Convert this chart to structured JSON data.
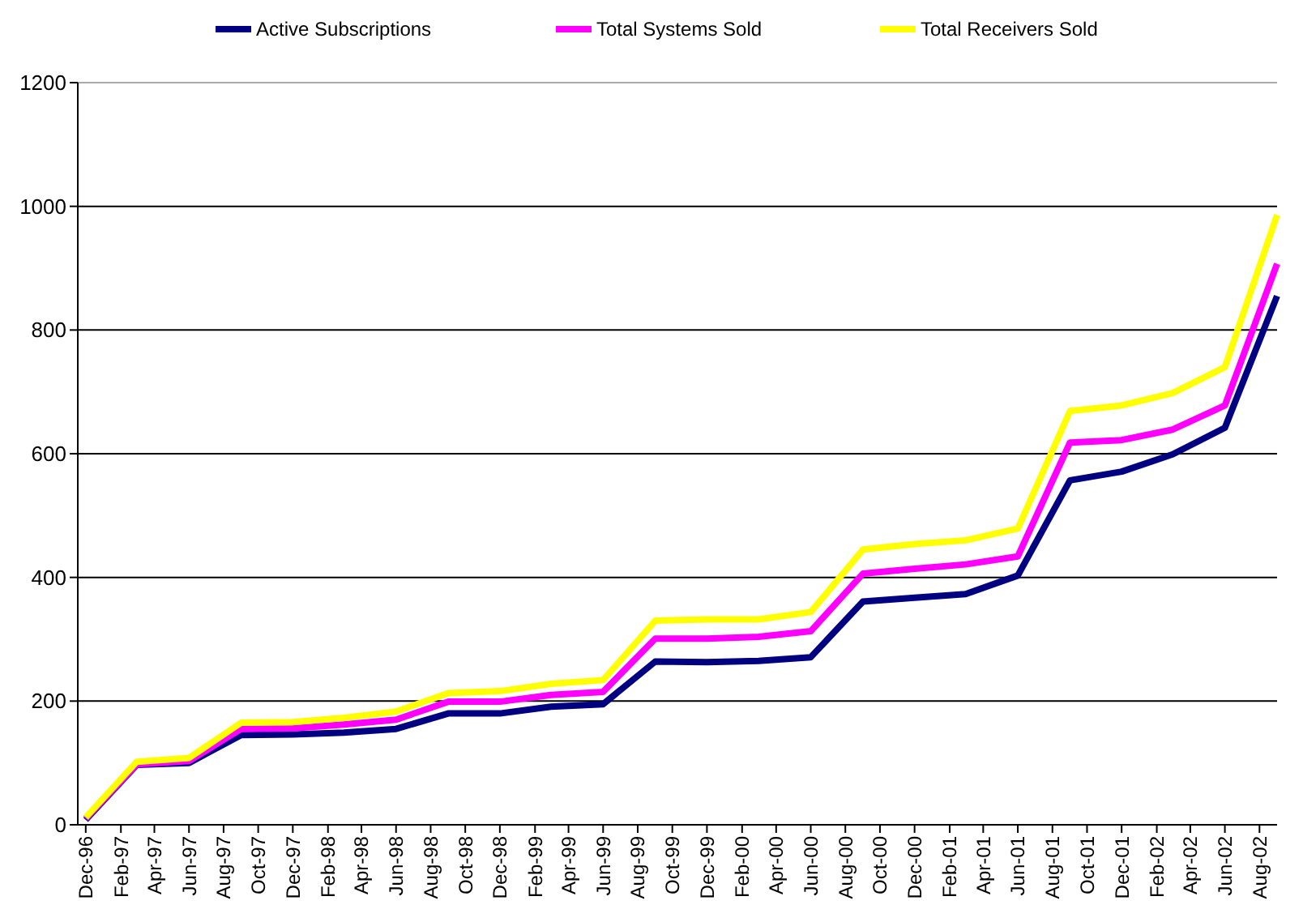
{
  "chart_data": {
    "type": "line",
    "x": [
      "1996-12",
      "1997-03",
      "1997-06",
      "1997-09",
      "1997-12",
      "1998-03",
      "1998-06",
      "1998-09",
      "1998-12",
      "1999-03",
      "1999-06",
      "1999-09",
      "1999-12",
      "2000-03",
      "2000-06",
      "2000-09",
      "2000-12",
      "2001-03",
      "2001-06",
      "2001-09",
      "2001-12",
      "2002-03",
      "2002-06",
      "2002-09"
    ],
    "series": [
      {
        "name": "Active Subscriptions",
        "color": "#000080",
        "values": [
          8,
          97,
          100,
          145,
          146,
          149,
          155,
          180,
          180,
          191,
          195,
          264,
          263,
          265,
          271,
          361,
          367,
          373,
          403,
          557,
          571,
          599,
          642,
          855
        ]
      },
      {
        "name": "Total Systems Sold",
        "color": "#ff00ff",
        "values": [
          10,
          98,
          103,
          155,
          156,
          162,
          170,
          199,
          199,
          210,
          215,
          301,
          301,
          304,
          313,
          406,
          414,
          421,
          434,
          618,
          622,
          639,
          678,
          907
        ]
      },
      {
        "name": "Total Receivers Sold",
        "color": "#ffff00",
        "values": [
          12,
          102,
          108,
          165,
          166,
          173,
          183,
          213,
          216,
          228,
          234,
          330,
          332,
          332,
          344,
          445,
          454,
          460,
          479,
          669,
          678,
          698,
          740,
          986
        ]
      }
    ],
    "xlim": [
      "1996-11-17",
      "2002-09-01"
    ],
    "xticks": [
      {
        "value": "1996-12",
        "label": "Dec-96"
      },
      {
        "value": "1997-02",
        "label": "Feb-97"
      },
      {
        "value": "1997-04",
        "label": "Apr-97"
      },
      {
        "value": "1997-06",
        "label": "Jun-97"
      },
      {
        "value": "1997-08",
        "label": "Aug-97"
      },
      {
        "value": "1997-10",
        "label": "Oct-97"
      },
      {
        "value": "1997-12",
        "label": "Dec-97"
      },
      {
        "value": "1998-02",
        "label": "Feb-98"
      },
      {
        "value": "1998-04",
        "label": "Apr-98"
      },
      {
        "value": "1998-06",
        "label": "Jun-98"
      },
      {
        "value": "1998-08",
        "label": "Aug-98"
      },
      {
        "value": "1998-10",
        "label": "Oct-98"
      },
      {
        "value": "1998-12",
        "label": "Dec-98"
      },
      {
        "value": "1999-02",
        "label": "Feb-99"
      },
      {
        "value": "1999-04",
        "label": "Apr-99"
      },
      {
        "value": "1999-06",
        "label": "Jun-99"
      },
      {
        "value": "1999-08",
        "label": "Aug-99"
      },
      {
        "value": "1999-10",
        "label": "Oct-99"
      },
      {
        "value": "1999-12",
        "label": "Dec-99"
      },
      {
        "value": "2000-02",
        "label": "Feb-00"
      },
      {
        "value": "2000-04",
        "label": "Apr-00"
      },
      {
        "value": "2000-06",
        "label": "Jun-00"
      },
      {
        "value": "2000-08",
        "label": "Aug-00"
      },
      {
        "value": "2000-10",
        "label": "Oct-00"
      },
      {
        "value": "2000-12",
        "label": "Dec-00"
      },
      {
        "value": "2001-02",
        "label": "Feb-01"
      },
      {
        "value": "2001-04",
        "label": "Apr-01"
      },
      {
        "value": "2001-06",
        "label": "Jun-01"
      },
      {
        "value": "2001-08",
        "label": "Aug-01"
      },
      {
        "value": "2001-10",
        "label": "Oct-01"
      },
      {
        "value": "2001-12",
        "label": "Dec-01"
      },
      {
        "value": "2002-02",
        "label": "Feb-02"
      },
      {
        "value": "2002-04",
        "label": "Apr-02"
      },
      {
        "value": "2002-06",
        "label": "Jun-02"
      },
      {
        "value": "2002-08",
        "label": "Aug-02"
      }
    ],
    "ylim": [
      0,
      1200
    ],
    "yticks": [
      0,
      200,
      400,
      600,
      800,
      1000,
      1200
    ],
    "grid": "y",
    "legend": "top",
    "marker": "none",
    "line_style": "solid"
  }
}
